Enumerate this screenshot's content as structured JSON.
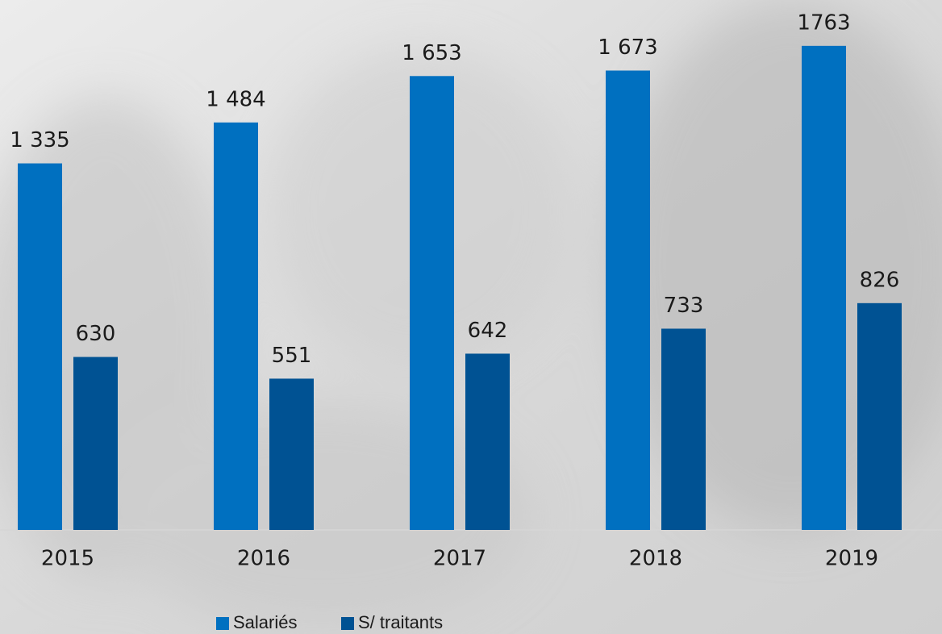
{
  "chart_data": {
    "type": "bar",
    "categories": [
      "2015",
      "2016",
      "2017",
      "2018",
      "2019"
    ],
    "series": [
      {
        "name": "Salariés",
        "color": "#0070c0",
        "values": [
          1335,
          1484,
          1653,
          1673,
          1763
        ],
        "value_labels": [
          "1 335",
          "1 484",
          "1 653",
          "1 673",
          "1763"
        ]
      },
      {
        "name": "S/ traitants",
        "color": "#005293",
        "values": [
          630,
          551,
          642,
          733,
          826
        ],
        "value_labels": [
          "630",
          "551",
          "642",
          "733",
          "826"
        ]
      }
    ],
    "ylim": [
      0,
      1930
    ]
  }
}
